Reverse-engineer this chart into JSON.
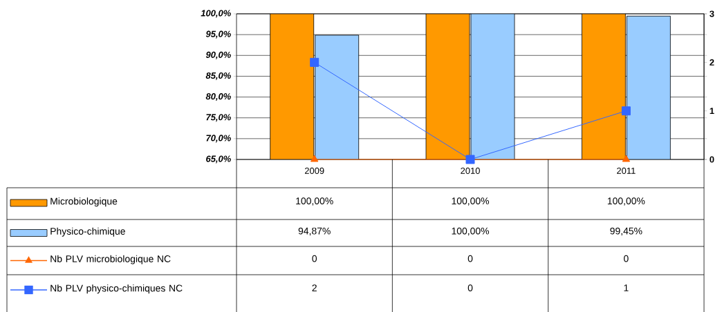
{
  "chart_data": {
    "type": "bar",
    "categories": [
      "2009",
      "2010",
      "2011"
    ],
    "series": [
      {
        "name": "Microbiologique",
        "color": "#ff9900",
        "values": [
          100,
          100,
          100
        ],
        "value_labels": [
          "100,00%",
          "100,00%",
          "100,00%"
        ]
      },
      {
        "name": "Physico-chimique",
        "color": "#99ccff",
        "values": [
          94.87,
          100,
          99.45
        ],
        "value_labels": [
          "94,87%",
          "100,00%",
          "99,45%"
        ]
      },
      {
        "name": "Nb PLV microbiologique NC",
        "type": "line",
        "axis": "y2",
        "color": "#ff6600",
        "marker": "triangle",
        "values": [
          0,
          0,
          0
        ],
        "value_labels": [
          "0",
          "0",
          "0"
        ]
      },
      {
        "name": "Nb PLV physico-chimiques NC",
        "type": "line",
        "axis": "y2",
        "color": "#3366ff",
        "marker": "square",
        "values": [
          2,
          0,
          1
        ],
        "value_labels": [
          "2",
          "0",
          "1"
        ]
      }
    ],
    "ylim": [
      65,
      100
    ],
    "yticks": [
      {
        "value": 65,
        "label": "65,0%"
      },
      {
        "value": 70,
        "label": "70,0%"
      },
      {
        "value": 75,
        "label": "75,0%"
      },
      {
        "value": 80,
        "label": "80,0%"
      },
      {
        "value": 85,
        "label": "85,0%"
      },
      {
        "value": 90,
        "label": "90,0%"
      },
      {
        "value": 95,
        "label": "95,0%"
      },
      {
        "value": 100,
        "label": "100,0%"
      }
    ],
    "y2lim": [
      0,
      3
    ],
    "y2ticks": [
      0,
      1,
      2,
      3
    ],
    "grid": "y",
    "legend": "bottom"
  }
}
